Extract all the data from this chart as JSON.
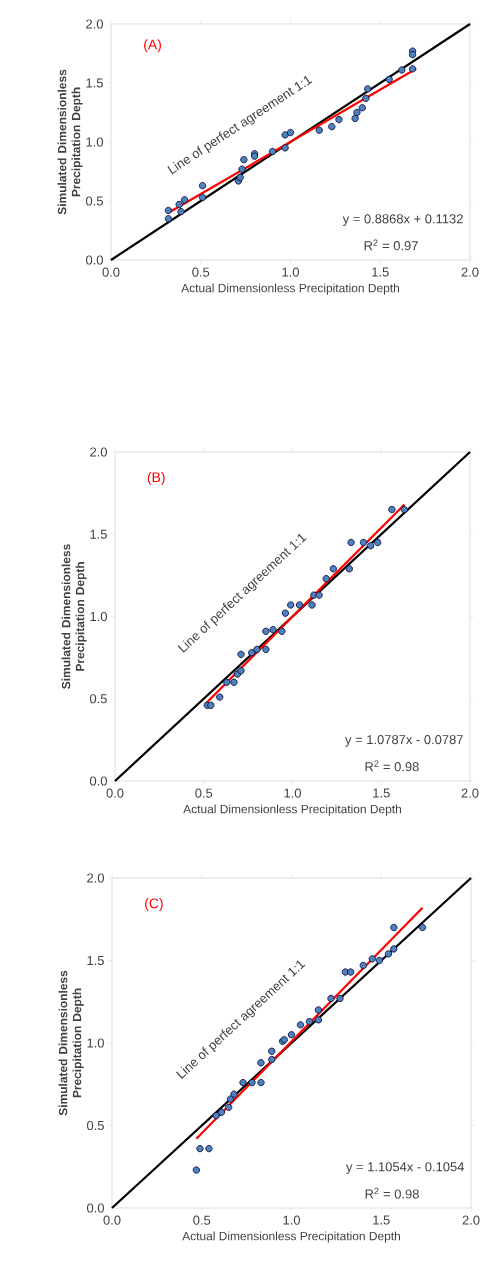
{
  "chart_data": [
    {
      "type": "scatter",
      "title": "(A)",
      "xlabel": "Actual Dimensionless Precipitation Depth",
      "ylabel": "Simulated Dimensionless Precipitation Depth",
      "xlim": [
        0,
        2
      ],
      "ylim": [
        0,
        2
      ],
      "xticks": [
        {
          "value": 0,
          "label": "0.0"
        },
        {
          "value": 0.5,
          "label": "0.5"
        },
        {
          "value": 1,
          "label": "1.0"
        },
        {
          "value": 1.5,
          "label": "1.5"
        },
        {
          "value": 2,
          "label": "2.0"
        }
      ],
      "yticks": [
        {
          "value": 0,
          "label": "0.0"
        },
        {
          "value": 0.5,
          "label": "0.5"
        },
        {
          "value": 1,
          "label": "1.0"
        },
        {
          "value": 1.5,
          "label": "1.5"
        },
        {
          "value": 2,
          "label": "2.0"
        }
      ],
      "annotations": [
        "Line of perfect agreement 1:1",
        "y = 0.8868x + 0.1132",
        "R$^{2}$ = 0.97"
      ],
      "series": [
        {
          "marker": "circle",
          "color": "#4f81bd",
          "x": [
            0.32,
            0.32,
            0.38,
            0.41,
            0.39,
            0.51,
            0.51,
            0.71,
            0.72,
            0.73,
            0.74,
            0.8,
            0.8,
            0.9,
            0.97,
            0.97,
            1.0,
            1.16,
            1.23,
            1.27,
            1.36,
            1.37,
            1.4,
            1.42,
            1.43,
            1.55,
            1.62,
            1.68,
            1.68,
            1.68
          ],
          "values": [
            0.35,
            0.42,
            0.47,
            0.51,
            0.41,
            0.63,
            0.53,
            0.67,
            0.7,
            0.77,
            0.85,
            0.9,
            0.88,
            0.92,
            1.06,
            0.95,
            1.08,
            1.1,
            1.13,
            1.19,
            1.2,
            1.25,
            1.29,
            1.37,
            1.45,
            1.53,
            1.61,
            1.62,
            1.77,
            1.74
          ]
        },
        {
          "type": "line",
          "color": "#000000",
          "x": [
            0,
            2
          ],
          "values": [
            0,
            2
          ]
        },
        {
          "type": "line",
          "color": "#ff0000",
          "x": [
            0.32,
            1.7
          ],
          "values": [
            0.4,
            1.62
          ]
        }
      ]
    },
    {
      "type": "scatter",
      "title": "(B)",
      "xlabel": "Actual Dimensionless Precipitation Depth",
      "ylabel": "Simulated Dimensionless Precipitation Depth",
      "xlim": [
        0,
        2
      ],
      "ylim": [
        0,
        2
      ],
      "xticks": [
        {
          "value": 0,
          "label": "0.0"
        },
        {
          "value": 0.5,
          "label": "0.5"
        },
        {
          "value": 1,
          "label": "1.0"
        },
        {
          "value": 1.5,
          "label": "1.5"
        },
        {
          "value": 2,
          "label": "2.0"
        }
      ],
      "yticks": [
        {
          "value": 0,
          "label": "0.0"
        },
        {
          "value": 0.5,
          "label": "0.5"
        },
        {
          "value": 1,
          "label": "1.0"
        },
        {
          "value": 1.5,
          "label": "1.5"
        },
        {
          "value": 2,
          "label": "2.0"
        }
      ],
      "annotations": [
        "Line of perfect agreement 1:1",
        "y = 1.0787x - 0.0787",
        "R$^{2}$ = 0.98"
      ],
      "series": [
        {
          "marker": "circle",
          "color": "#4f81bd",
          "x": [
            0.52,
            0.54,
            0.59,
            0.63,
            0.67,
            0.69,
            0.71,
            0.71,
            0.77,
            0.8,
            0.85,
            0.85,
            0.89,
            0.94,
            0.96,
            0.99,
            1.04,
            1.11,
            1.12,
            1.15,
            1.19,
            1.23,
            1.32,
            1.33,
            1.4,
            1.48,
            1.44,
            1.56,
            1.63
          ],
          "values": [
            0.46,
            0.46,
            0.51,
            0.6,
            0.6,
            0.65,
            0.67,
            0.77,
            0.78,
            0.8,
            0.8,
            0.91,
            0.92,
            0.91,
            1.02,
            1.07,
            1.07,
            1.07,
            1.13,
            1.13,
            1.23,
            1.29,
            1.29,
            1.45,
            1.45,
            1.45,
            1.43,
            1.65,
            1.65
          ]
        },
        {
          "type": "line",
          "color": "#000000",
          "x": [
            0,
            2
          ],
          "values": [
            0,
            2
          ]
        },
        {
          "type": "line",
          "color": "#ff0000",
          "x": [
            0.51,
            1.63
          ],
          "values": [
            0.47,
            1.68
          ]
        }
      ]
    },
    {
      "type": "scatter",
      "title": "(C)",
      "xlabel": "Actual Dimensionless Precipitation Depth",
      "ylabel": "Simulated Dimensionless Precipitation Depth",
      "xlim": [
        0,
        2
      ],
      "ylim": [
        0,
        2
      ],
      "xticks": [
        {
          "value": 0,
          "label": "0.0"
        },
        {
          "value": 0.5,
          "label": "0.5"
        },
        {
          "value": 1,
          "label": "1.0"
        },
        {
          "value": 1.5,
          "label": "1.5"
        },
        {
          "value": 2,
          "label": "2.0"
        }
      ],
      "yticks": [
        {
          "value": 0,
          "label": "0.0"
        },
        {
          "value": 0.5,
          "label": "0.5"
        },
        {
          "value": 1,
          "label": "1.0"
        },
        {
          "value": 1.5,
          "label": "1.5"
        },
        {
          "value": 2,
          "label": "2.0"
        }
      ],
      "annotations": [
        "Line of perfect agreement 1:1",
        "y = 1.1054x - 0.1054",
        "R$^{2}$ = 0.98"
      ],
      "series": [
        {
          "marker": "circle",
          "color": "#4f81bd",
          "x": [
            0.47,
            0.49,
            0.54,
            0.58,
            0.61,
            0.65,
            0.66,
            0.68,
            0.73,
            0.78,
            0.83,
            0.83,
            0.89,
            0.89,
            0.95,
            0.96,
            1.0,
            1.05,
            1.1,
            1.15,
            1.15,
            1.22,
            1.27,
            1.3,
            1.33,
            1.4,
            1.45,
            1.49,
            1.54,
            1.57,
            1.57,
            1.73
          ],
          "values": [
            0.23,
            0.36,
            0.36,
            0.56,
            0.58,
            0.61,
            0.66,
            0.69,
            0.76,
            0.76,
            0.76,
            0.88,
            0.9,
            0.95,
            1.01,
            1.02,
            1.05,
            1.11,
            1.13,
            1.2,
            1.14,
            1.27,
            1.27,
            1.43,
            1.43,
            1.47,
            1.51,
            1.5,
            1.54,
            1.57,
            1.7,
            1.7
          ]
        },
        {
          "type": "line",
          "color": "#000000",
          "x": [
            0,
            2
          ],
          "values": [
            0,
            2
          ]
        },
        {
          "type": "line",
          "color": "#ff0000",
          "x": [
            0.47,
            1.73
          ],
          "values": [
            0.42,
            1.82
          ]
        }
      ]
    }
  ]
}
